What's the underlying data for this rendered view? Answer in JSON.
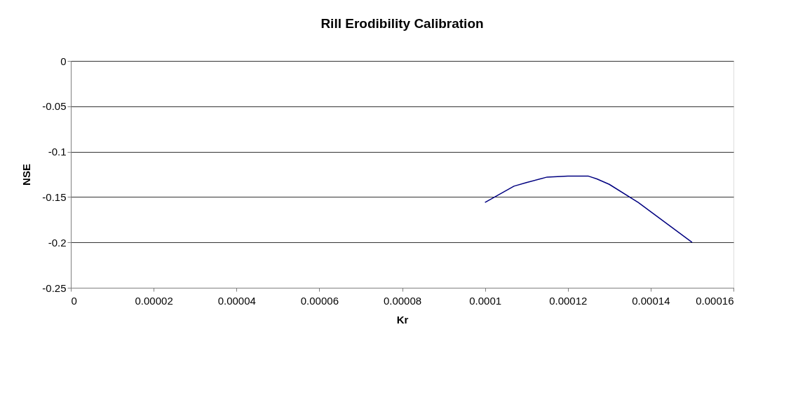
{
  "chart_data": {
    "type": "line",
    "title": "Rill Erodibility Calibration",
    "xlabel": "Kr",
    "ylabel": "NSE",
    "x": [
      0.0001,
      0.000107,
      0.00011,
      0.000115,
      0.00012,
      0.000125,
      0.000127,
      0.00013,
      0.000137,
      0.00015
    ],
    "series": [
      {
        "color": "#000080",
        "values": [
          -0.156,
          -0.138,
          -0.134,
          -0.128,
          -0.127,
          -0.127,
          -0.13,
          -0.136,
          -0.156,
          -0.2
        ]
      }
    ],
    "xlim": [
      0,
      0.00016
    ],
    "xticks": [
      0,
      {
        "value": 2e-05,
        "label": "0.00002"
      },
      {
        "value": 4e-05,
        "label": "0.00004"
      },
      {
        "value": 6e-05,
        "label": "0.00006"
      },
      {
        "value": 8e-05,
        "label": "0.00008"
      },
      0.0001,
      0.00012,
      0.00014,
      0.00016
    ],
    "ylim": [
      -0.25,
      0
    ],
    "yticks": [
      -0.25,
      -0.2,
      -0.15,
      -0.1,
      -0.05,
      0
    ],
    "grid": "y",
    "legend": false,
    "marker": "none",
    "line_style": "solid"
  }
}
